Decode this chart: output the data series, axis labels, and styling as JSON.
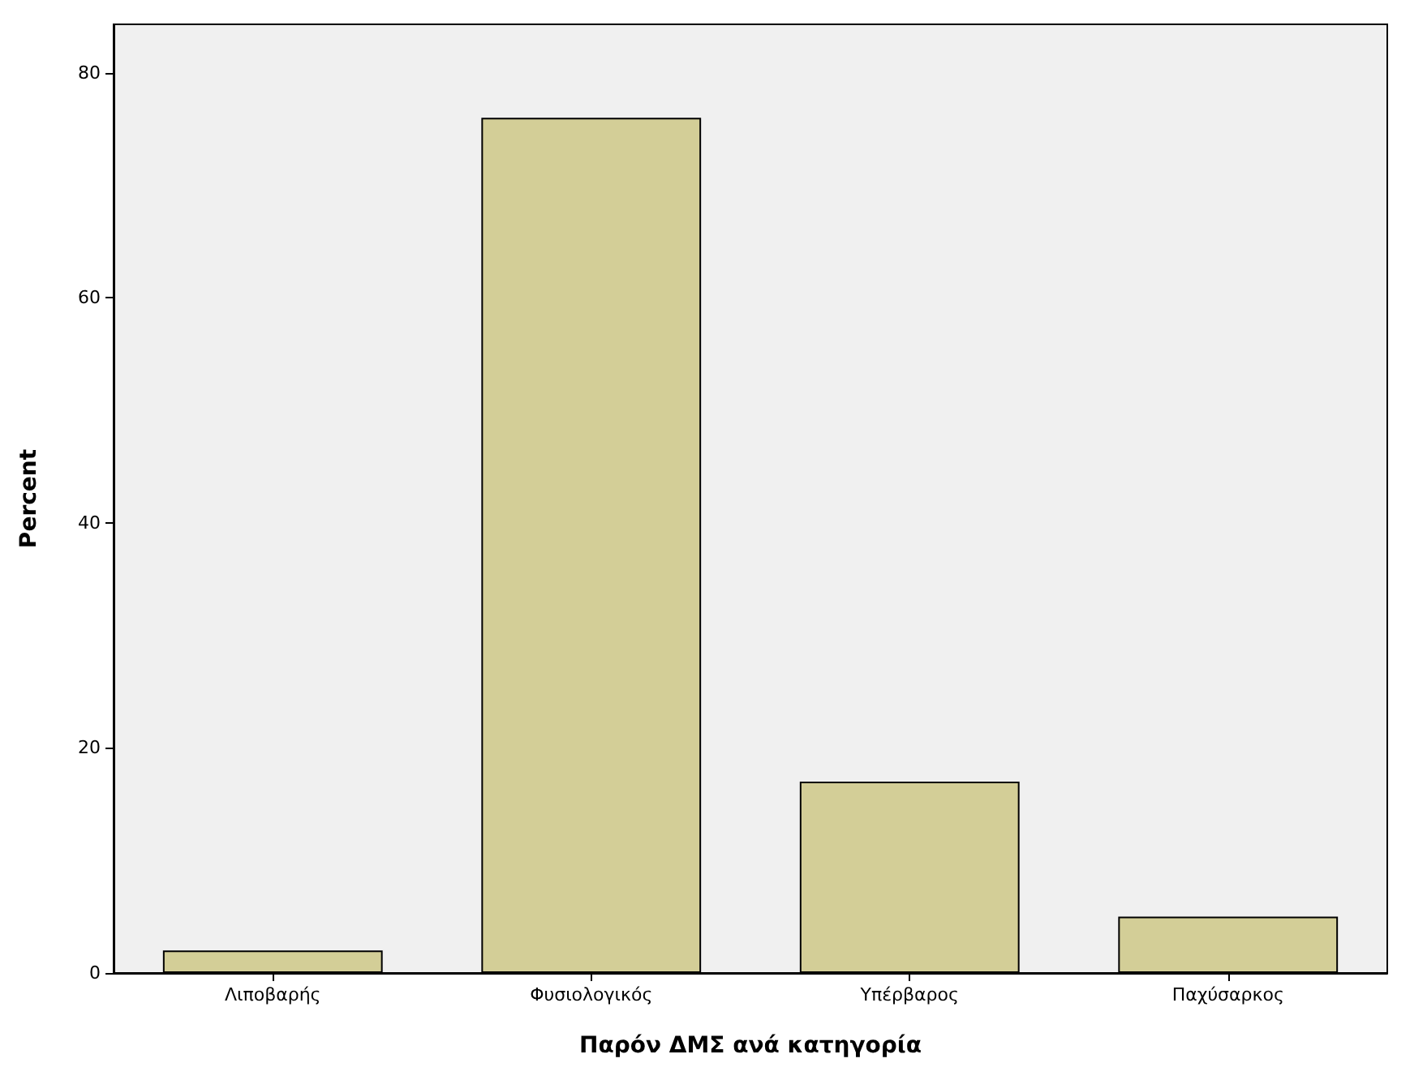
{
  "chart_data": {
    "type": "bar",
    "xlabel": "Παρόν ΔΜΣ ανά κατηγορία",
    "ylabel": "Percent",
    "categories": [
      "Λιποβαρής",
      "Φυσιολογικός",
      "Υπέρβαρος",
      "Παχύσαρκος"
    ],
    "values": [
      2,
      76,
      17,
      5
    ],
    "color": "#d3ce97",
    "ylim": [
      0,
      84.3
    ],
    "yticks": [
      0,
      20,
      40,
      60,
      80
    ],
    "grid": false
  }
}
